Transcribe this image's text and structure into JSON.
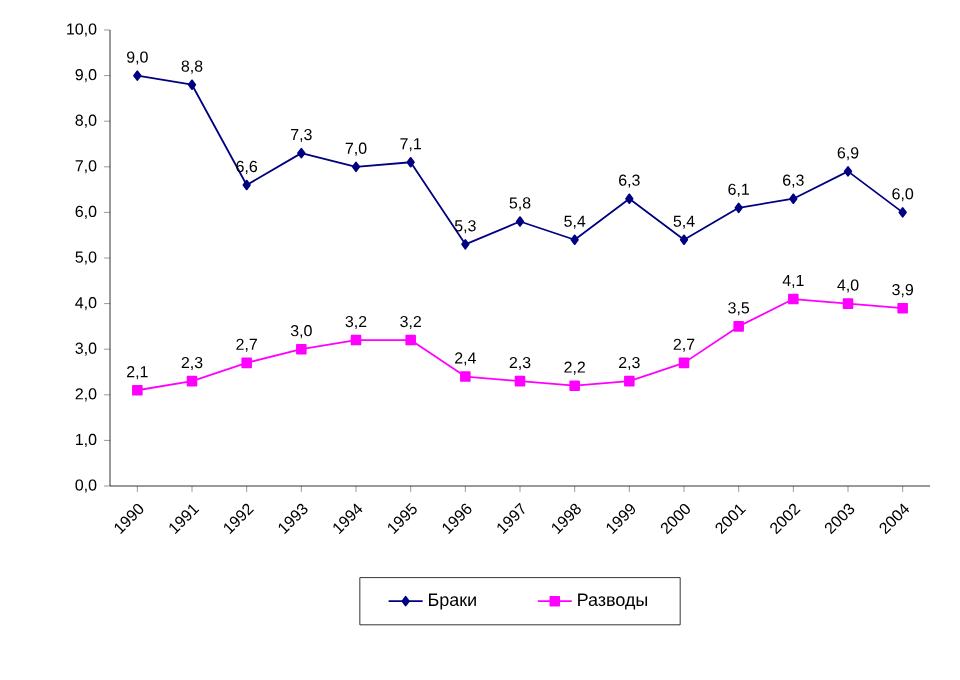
{
  "chart_data": {
    "type": "line",
    "categories": [
      "1990",
      "1991",
      "1992",
      "1993",
      "1994",
      "1995",
      "1996",
      "1997",
      "1998",
      "1999",
      "2000",
      "2001",
      "2002",
      "2003",
      "2004"
    ],
    "series": [
      {
        "name": "Браки",
        "color": "#000080",
        "marker": "diamond",
        "values": [
          9.0,
          8.8,
          6.6,
          7.3,
          7.0,
          7.1,
          5.3,
          5.8,
          5.4,
          6.3,
          5.4,
          6.1,
          6.3,
          6.9,
          6.0
        ],
        "value_labels": [
          "9,0",
          "8,8",
          "6,6",
          "7,3",
          "7,0",
          "7,1",
          "5,3",
          "5,8",
          "5,4",
          "6,3",
          "5,4",
          "6,1",
          "6,3",
          "6,9",
          "6,0"
        ]
      },
      {
        "name": "Разводы",
        "color": "#ff00ff",
        "marker": "square",
        "values": [
          2.1,
          2.3,
          2.7,
          3.0,
          3.2,
          3.2,
          2.4,
          2.3,
          2.2,
          2.3,
          2.7,
          3.5,
          4.1,
          4.0,
          3.9
        ],
        "value_labels": [
          "2,1",
          "2,3",
          "2,7",
          "3,0",
          "3,2",
          "3,2",
          "2,4",
          "2,3",
          "2,2",
          "2,3",
          "2,7",
          "3,5",
          "4,1",
          "4,0",
          "3,9"
        ]
      }
    ],
    "ylim": [
      0,
      10
    ],
    "yticks": [
      {
        "value": 0,
        "label": "0,0"
      },
      {
        "value": 1,
        "label": "1,0"
      },
      {
        "value": 2,
        "label": "2,0"
      },
      {
        "value": 3,
        "label": "3,0"
      },
      {
        "value": 4,
        "label": "4,0"
      },
      {
        "value": 5,
        "label": "5,0"
      },
      {
        "value": 6,
        "label": "6,0"
      },
      {
        "value": 7,
        "label": "7,0"
      },
      {
        "value": 8,
        "label": "8,0"
      },
      {
        "value": 9,
        "label": "9,0"
      },
      {
        "value": 10,
        "label": "10,0"
      }
    ],
    "grid": false,
    "legend": "bottom"
  }
}
